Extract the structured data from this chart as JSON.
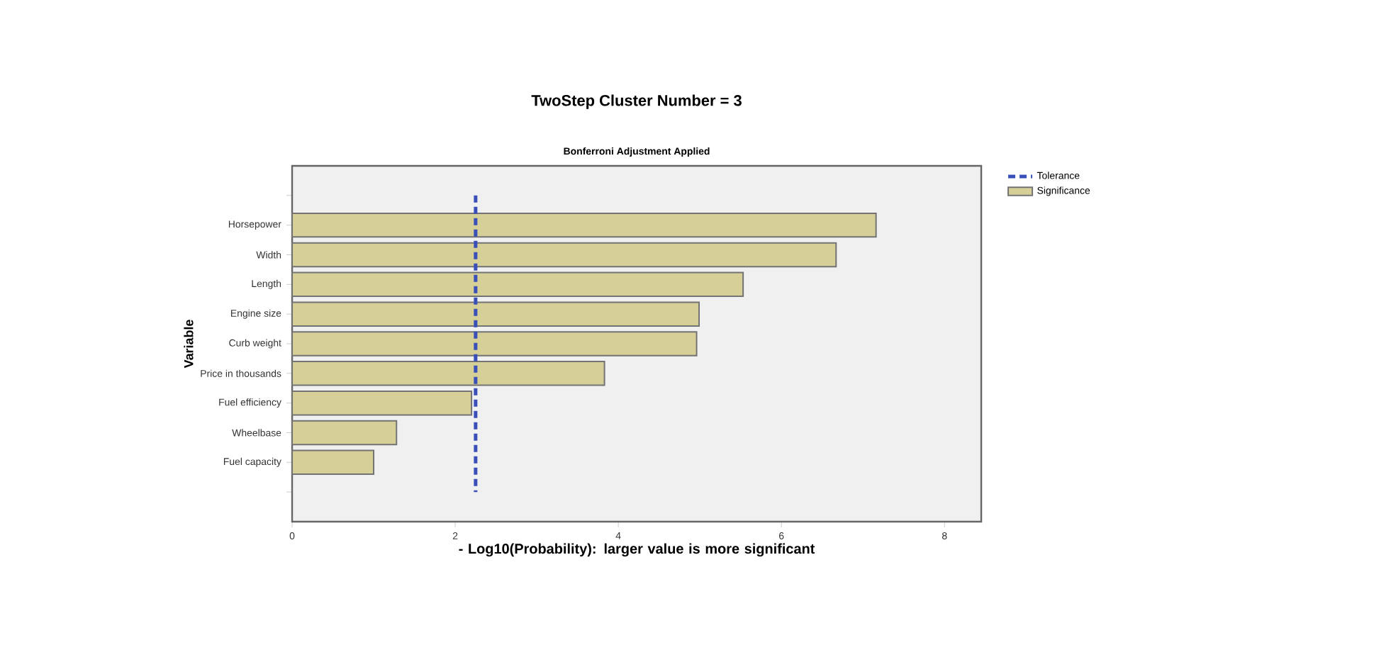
{
  "chart_data": {
    "type": "bar",
    "orientation": "horizontal",
    "title": "TwoStep Cluster Number = 3",
    "subtitle": "Bonferroni Adjustment Applied",
    "xlabel": "- Log10(Probability): larger value is more significant",
    "ylabel": "Variable",
    "categories": [
      null,
      "Horsepower",
      "Width",
      "Length",
      "Engine size",
      "Curb weight",
      "Price in thousands",
      "Fuel efficiency",
      "Wheelbase",
      "Fuel capacity",
      null
    ],
    "series": [
      {
        "name": "Significance",
        "color": "#d6cf98",
        "values": [
          null,
          7.16,
          6.67,
          5.53,
          4.99,
          4.96,
          3.83,
          2.2,
          1.28,
          1.0,
          null
        ]
      }
    ],
    "ref_lines": [
      {
        "axis": "x",
        "value": 2.25,
        "label": "Tolerance",
        "color": "#3a50b8",
        "line_style": "dashed"
      }
    ],
    "xlim": [
      0,
      8.45
    ],
    "xticks": [
      0,
      2,
      4,
      6,
      8
    ],
    "grid": false,
    "legend": "top right"
  }
}
